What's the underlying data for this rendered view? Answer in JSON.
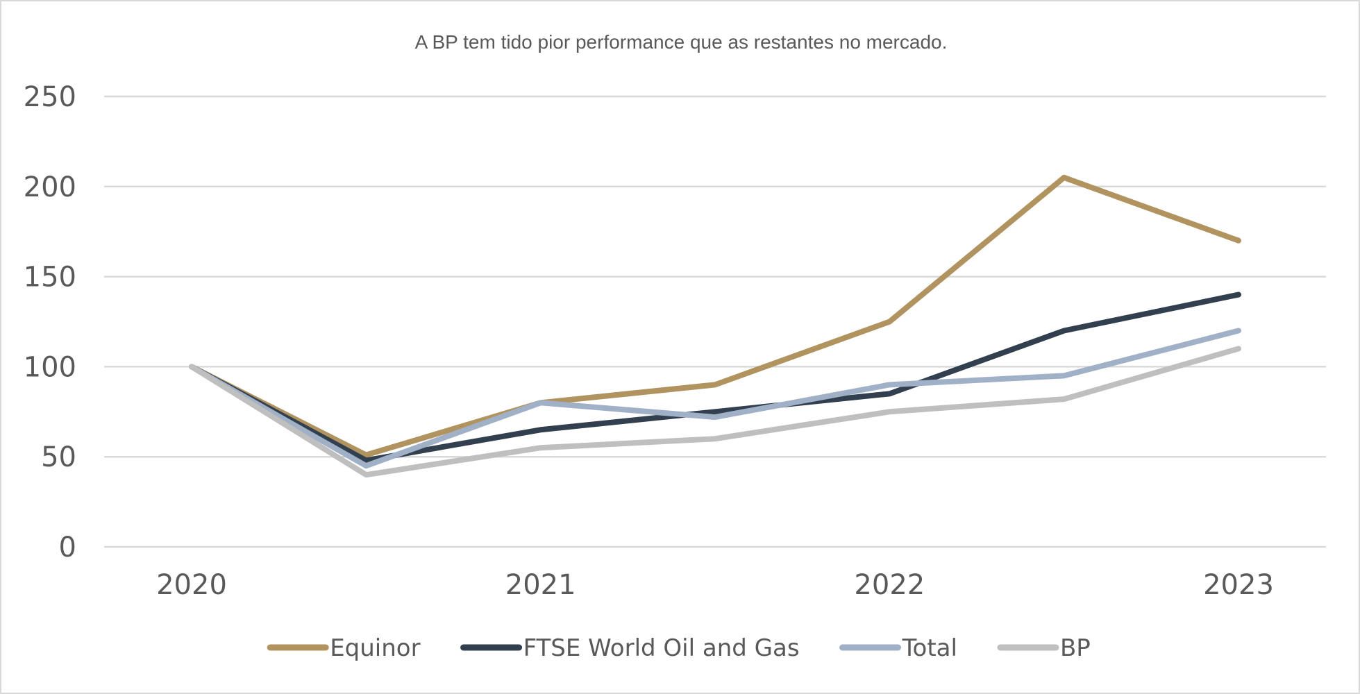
{
  "chart_data": {
    "type": "line",
    "title": "A BP tem tido pior performance que as restantes no mercado.",
    "xlabel": "",
    "ylabel": "",
    "x": [
      "2020",
      "",
      "2021",
      "",
      "2022",
      "",
      "2023"
    ],
    "x_tick_labels": [
      "2020",
      "2021",
      "2022",
      "2023"
    ],
    "y_ticks": [
      0,
      50,
      100,
      150,
      200,
      250
    ],
    "ylim": [
      0,
      250
    ],
    "grid": true,
    "legend_position": "bottom",
    "series": [
      {
        "name": "Equinor",
        "color": "#b0935f",
        "values": [
          100,
          51,
          80,
          90,
          125,
          205,
          170
        ]
      },
      {
        "name": "FTSE World Oil and Gas",
        "color": "#323f4f",
        "values": [
          100,
          48,
          65,
          75,
          85,
          120,
          140
        ]
      },
      {
        "name": "Total",
        "color": "#a0b1c7",
        "values": [
          100,
          45,
          80,
          72,
          90,
          95,
          120
        ]
      },
      {
        "name": "BP",
        "color": "#bfbfbf",
        "values": [
          100,
          40,
          55,
          60,
          75,
          82,
          110
        ]
      }
    ]
  }
}
